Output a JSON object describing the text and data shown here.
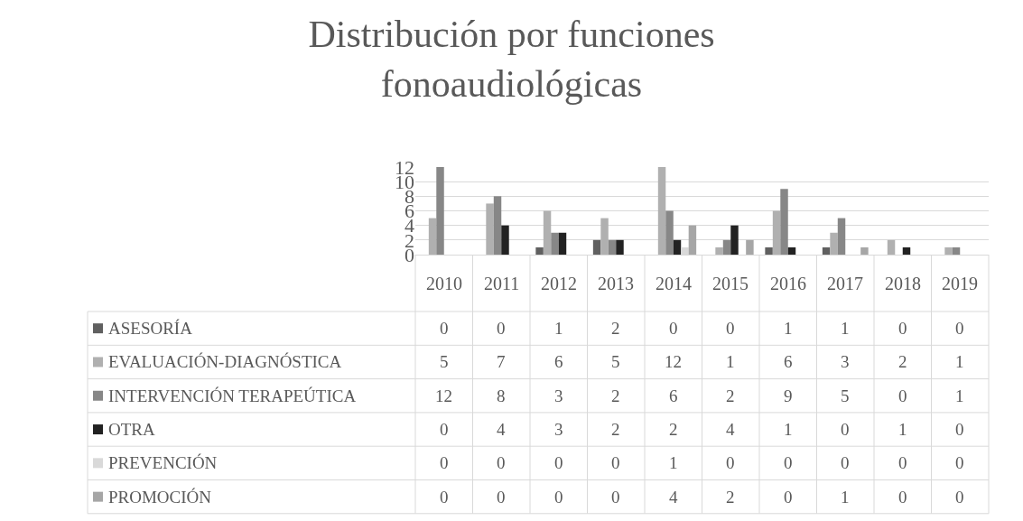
{
  "chart_data": {
    "type": "bar",
    "title": "Distribución por funciones fonoaudiológicas",
    "categories": [
      "2010",
      "2011",
      "2012",
      "2013",
      "2014",
      "2015",
      "2016",
      "2017",
      "2018",
      "2019"
    ],
    "series": [
      {
        "name": "ASESORÍA",
        "color": "#606060",
        "values": [
          0,
          0,
          1,
          2,
          0,
          0,
          1,
          1,
          0,
          0
        ]
      },
      {
        "name": "EVALUACIÓN-DIAGNÓSTICA",
        "color": "#b0b0b0",
        "values": [
          5,
          7,
          6,
          5,
          12,
          1,
          6,
          3,
          2,
          1
        ]
      },
      {
        "name": "INTERVENCIÓN TERAPEÚTICA",
        "color": "#878787",
        "values": [
          12,
          8,
          3,
          2,
          6,
          2,
          9,
          5,
          0,
          1
        ]
      },
      {
        "name": "OTRA",
        "color": "#222222",
        "values": [
          0,
          4,
          3,
          2,
          2,
          4,
          1,
          0,
          1,
          0
        ]
      },
      {
        "name": "PREVENCIÓN",
        "color": "#d9d9d9",
        "values": [
          0,
          0,
          0,
          0,
          1,
          0,
          0,
          0,
          0,
          0
        ]
      },
      {
        "name": "PROMOCIÓN",
        "color": "#a6a6a6",
        "values": [
          0,
          0,
          0,
          0,
          4,
          2,
          0,
          1,
          0,
          0
        ]
      }
    ],
    "ylim": [
      0,
      12
    ],
    "yticks": [
      0,
      2,
      4,
      6,
      8,
      10,
      12
    ],
    "grid": "y",
    "legend": "bottom",
    "data_labels": true
  }
}
